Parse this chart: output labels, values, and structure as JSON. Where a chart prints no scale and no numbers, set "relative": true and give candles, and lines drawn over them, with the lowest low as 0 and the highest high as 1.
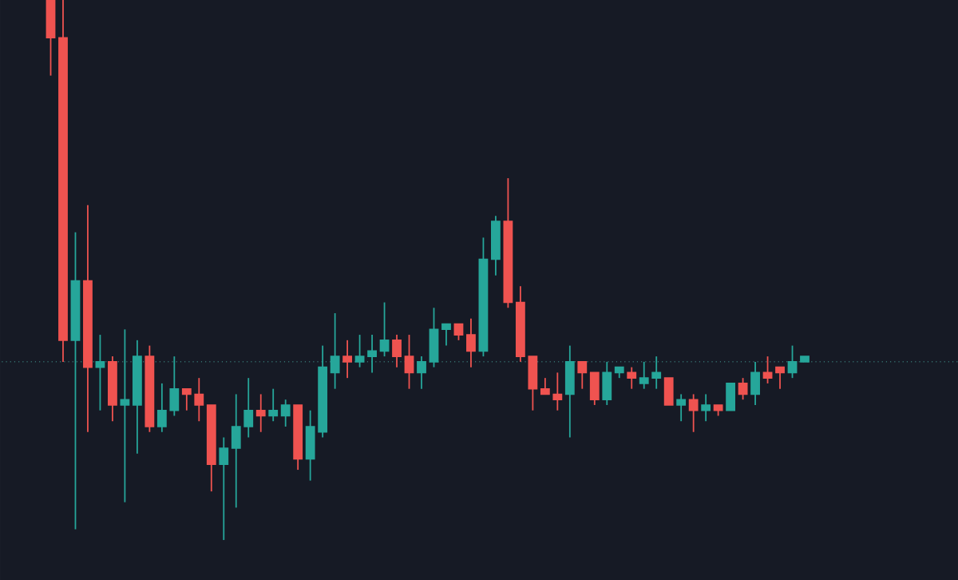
{
  "chart_data": {
    "type": "candlestick",
    "relative": true,
    "categories": [
      null,
      null,
      null,
      null,
      null,
      null,
      null,
      null,
      null,
      null,
      null,
      null,
      null,
      null,
      null,
      null,
      null,
      null,
      null,
      null,
      null,
      null,
      null,
      null,
      null,
      null,
      null,
      null,
      null,
      null,
      null,
      null,
      null,
      null,
      null,
      null,
      null,
      null,
      null,
      null,
      null,
      null,
      null,
      null,
      null,
      null,
      null,
      null,
      null,
      null,
      null,
      null,
      null,
      null,
      null,
      null,
      null,
      null,
      null,
      null,
      null,
      null
    ],
    "ohlc": [
      [
        1,
        1,
        0.86,
        0.93
      ],
      [
        0.93,
        1,
        0.33,
        0.37
      ],
      [
        0.37,
        0.57,
        0.02,
        0.48
      ],
      [
        0.48,
        0.62,
        0.2,
        0.32
      ],
      [
        0.32,
        0.38,
        0.24,
        0.33
      ],
      [
        0.33,
        0.34,
        0.22,
        0.25
      ],
      [
        0.25,
        0.39,
        0.07,
        0.26
      ],
      [
        0.25,
        0.37,
        0.16,
        0.34
      ],
      [
        0.34,
        0.36,
        0.2,
        0.21
      ],
      [
        0.21,
        0.29,
        0.2,
        0.24
      ],
      [
        0.24,
        0.34,
        0.23,
        0.28
      ],
      [
        0.28,
        0.28,
        0.24,
        0.27
      ],
      [
        0.27,
        0.3,
        0.22,
        0.25
      ],
      [
        0.25,
        0.25,
        0.09,
        0.14
      ],
      [
        0.14,
        0.19,
        0,
        0.17
      ],
      [
        0.17,
        0.27,
        0.06,
        0.21
      ],
      [
        0.21,
        0.3,
        0.19,
        0.24
      ],
      [
        0.24,
        0.27,
        0.2,
        0.23
      ],
      [
        0.23,
        0.28,
        0.22,
        0.24
      ],
      [
        0.23,
        0.26,
        0.21,
        0.25
      ],
      [
        0.25,
        0.25,
        0.13,
        0.15
      ],
      [
        0.15,
        0.24,
        0.11,
        0.21
      ],
      [
        0.2,
        0.36,
        0.19,
        0.32
      ],
      [
        0.31,
        0.42,
        0.28,
        0.34
      ],
      [
        0.34,
        0.37,
        0.3,
        0.33
      ],
      [
        0.33,
        0.38,
        0.32,
        0.34
      ],
      [
        0.34,
        0.38,
        0.31,
        0.35
      ],
      [
        0.35,
        0.44,
        0.34,
        0.37
      ],
      [
        0.37,
        0.38,
        0.32,
        0.34
      ],
      [
        0.34,
        0.38,
        0.28,
        0.31
      ],
      [
        0.31,
        0.34,
        0.28,
        0.33
      ],
      [
        0.33,
        0.43,
        0.32,
        0.39
      ],
      [
        0.39,
        0.4,
        0.36,
        0.4
      ],
      [
        0.4,
        0.4,
        0.37,
        0.38
      ],
      [
        0.38,
        0.41,
        0.32,
        0.35
      ],
      [
        0.35,
        0.56,
        0.34,
        0.52
      ],
      [
        0.52,
        0.6,
        0.49,
        0.59
      ],
      [
        0.59,
        0.67,
        0.43,
        0.44
      ],
      [
        0.44,
        0.47,
        0.33,
        0.34
      ],
      [
        0.34,
        0.34,
        0.24,
        0.28
      ],
      [
        0.28,
        0.3,
        0.27,
        0.27
      ],
      [
        0.27,
        0.31,
        0.24,
        0.26
      ],
      [
        0.27,
        0.36,
        0.19,
        0.33
      ],
      [
        0.33,
        0.33,
        0.28,
        0.31
      ],
      [
        0.31,
        0.31,
        0.25,
        0.26
      ],
      [
        0.26,
        0.33,
        0.25,
        0.31
      ],
      [
        0.31,
        0.32,
        0.3,
        0.32
      ],
      [
        0.31,
        0.32,
        0.28,
        0.3
      ],
      [
        0.29,
        0.33,
        0.28,
        0.3
      ],
      [
        0.3,
        0.34,
        0.28,
        0.31
      ],
      [
        0.3,
        0.3,
        0.25,
        0.25
      ],
      [
        0.25,
        0.27,
        0.22,
        0.26
      ],
      [
        0.26,
        0.27,
        0.2,
        0.24
      ],
      [
        0.24,
        0.27,
        0.22,
        0.25
      ],
      [
        0.25,
        0.25,
        0.23,
        0.24
      ],
      [
        0.24,
        0.29,
        0.24,
        0.29
      ],
      [
        0.29,
        0.3,
        0.26,
        0.27
      ],
      [
        0.27,
        0.33,
        0.25,
        0.31
      ],
      [
        0.31,
        0.34,
        0.29,
        0.3
      ],
      [
        0.32,
        0.32,
        0.28,
        0.31
      ],
      [
        0.31,
        0.36,
        0.3,
        0.33
      ],
      [
        0.33,
        0.34,
        0.33,
        0.34
      ]
    ],
    "colors": [
      "#ef5350",
      "#ef5350",
      "#26a69a",
      "#ef5350",
      "#26a69a",
      "#ef5350",
      "#26a69a",
      "#26a69a",
      "#ef5350",
      "#26a69a",
      "#26a69a",
      "#ef5350",
      "#ef5350",
      "#ef5350",
      "#26a69a",
      "#26a69a",
      "#26a69a",
      "#ef5350",
      "#26a69a",
      "#26a69a",
      "#ef5350",
      "#26a69a",
      "#26a69a",
      "#26a69a",
      "#ef5350",
      "#26a69a",
      "#26a69a",
      "#26a69a",
      "#ef5350",
      "#ef5350",
      "#26a69a",
      "#26a69a",
      "#26a69a",
      "#ef5350",
      "#ef5350",
      "#26a69a",
      "#26a69a",
      "#ef5350",
      "#ef5350",
      "#ef5350",
      "#ef5350",
      "#ef5350",
      "#26a69a",
      "#ef5350",
      "#ef5350",
      "#26a69a",
      "#26a69a",
      "#ef5350",
      "#26a69a",
      "#26a69a",
      "#ef5350",
      "#26a69a",
      "#ef5350",
      "#26a69a",
      "#ef5350",
      "#26a69a",
      "#ef5350",
      "#26a69a",
      "#ef5350",
      "#ef5350",
      "#26a69a",
      "#26a69a"
    ],
    "ref_lines": [
      {
        "axis": "y",
        "value": 0.33,
        "color": "#3f8a85",
        "line_style": "dotted"
      }
    ]
  }
}
